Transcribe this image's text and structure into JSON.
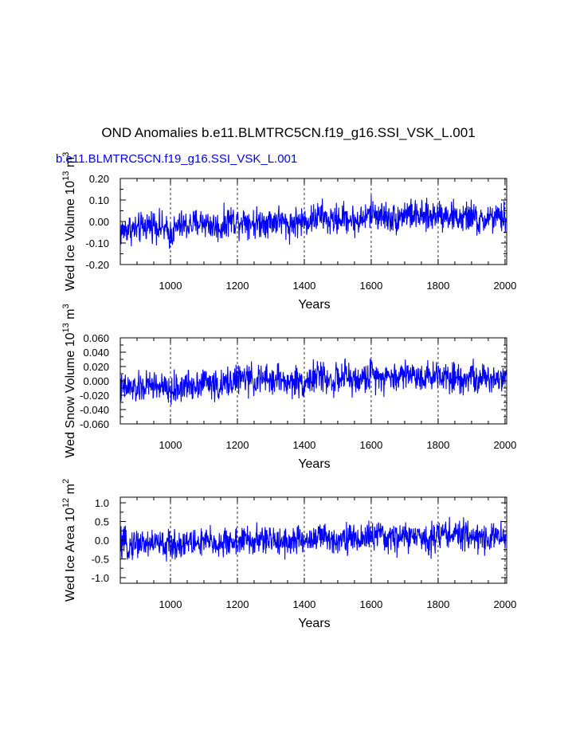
{
  "title": "OND Anomalies b.e11.BLMTRC5CN.f19_g16.SSI_VSK_L.001",
  "subtitle": "b.e11.BLMTRC5CN.f19_g16.SSI_VSK_L.001",
  "line_color": "#0000ff",
  "chart_data": [
    {
      "type": "line",
      "ylabel_main": "Wed Ice Volume 10",
      "ylabel_exp": "13",
      "ylabel_unit": " m",
      "ylabel_unit_exp": "3",
      "xlabel": "Years",
      "xlim": [
        850,
        2005
      ],
      "ylim": [
        -0.2,
        0.2
      ],
      "x_ticks": [
        1000,
        1200,
        1400,
        1600,
        1800,
        2000
      ],
      "x_tick_labels": [
        "1000",
        "1200",
        "1400",
        "1600",
        "1800",
        "2000"
      ],
      "y_ticks": [
        -0.2,
        -0.1,
        0.0,
        0.1,
        0.2
      ],
      "y_tick_labels": [
        "-0.20",
        "-0.10",
        "0.00",
        "0.10",
        "0.20"
      ],
      "grid": "vertical dashed at major x ticks",
      "series": [
        {
          "x": [
            850,
            875,
            900,
            925,
            950,
            975,
            1000,
            1025,
            1050,
            1075,
            1100,
            1125,
            1150,
            1175,
            1200,
            1225,
            1250,
            1275,
            1300,
            1325,
            1350,
            1375,
            1400,
            1425,
            1450,
            1475,
            1500,
            1525,
            1550,
            1575,
            1600,
            1625,
            1650,
            1675,
            1700,
            1725,
            1750,
            1775,
            1800,
            1825,
            1850,
            1875,
            1900,
            1925,
            1950,
            1975,
            2000
          ],
          "y": [
            -0.05,
            -0.03,
            -0.04,
            -0.02,
            -0.01,
            -0.03,
            -0.06,
            -0.02,
            -0.02,
            -0.01,
            0.0,
            -0.02,
            -0.03,
            0.01,
            0.0,
            0.01,
            -0.01,
            0.0,
            0.0,
            0.01,
            -0.02,
            0.0,
            0.0,
            0.01,
            0.03,
            0.0,
            0.01,
            0.02,
            0.0,
            0.01,
            0.04,
            0.03,
            0.02,
            0.01,
            0.04,
            0.03,
            0.02,
            0.02,
            0.04,
            0.03,
            0.02,
            0.01,
            0.03,
            -0.01,
            0.02,
            0.01,
            0.02
          ]
        }
      ]
    },
    {
      "type": "line",
      "ylabel_main": "Wed Snow Volume 10",
      "ylabel_exp": "13",
      "ylabel_unit": " m",
      "ylabel_unit_exp": "3",
      "xlabel": "Years",
      "xlim": [
        850,
        2005
      ],
      "ylim": [
        -0.06,
        0.06
      ],
      "x_ticks": [
        1000,
        1200,
        1400,
        1600,
        1800,
        2000
      ],
      "x_tick_labels": [
        "1000",
        "1200",
        "1400",
        "1600",
        "1800",
        "2000"
      ],
      "y_ticks": [
        -0.06,
        -0.04,
        -0.02,
        0.0,
        0.02,
        0.04,
        0.06
      ],
      "y_tick_labels": [
        "-0.060",
        "-0.040",
        "-0.020",
        "0.000",
        "0.020",
        "0.040",
        "0.060"
      ],
      "grid": "vertical dashed at major x ticks",
      "series": [
        {
          "x": [
            850,
            875,
            900,
            925,
            950,
            975,
            1000,
            1025,
            1050,
            1075,
            1100,
            1125,
            1150,
            1175,
            1200,
            1225,
            1250,
            1275,
            1300,
            1325,
            1350,
            1375,
            1400,
            1425,
            1450,
            1475,
            1500,
            1525,
            1550,
            1575,
            1600,
            1625,
            1650,
            1675,
            1700,
            1725,
            1750,
            1775,
            1800,
            1825,
            1850,
            1875,
            1900,
            1925,
            1950,
            1975,
            2000
          ],
          "y": [
            -0.012,
            -0.01,
            -0.012,
            -0.008,
            -0.005,
            -0.01,
            -0.015,
            -0.01,
            -0.006,
            -0.004,
            0.0,
            -0.004,
            -0.01,
            0.0,
            0.002,
            0.004,
            0.0,
            0.002,
            0.0,
            0.004,
            -0.004,
            0.0,
            -0.002,
            0.004,
            0.008,
            0.0,
            0.002,
            0.006,
            0.0,
            0.002,
            0.01,
            0.008,
            0.006,
            0.004,
            0.012,
            0.008,
            0.006,
            0.006,
            0.01,
            0.008,
            0.006,
            0.004,
            0.008,
            -0.002,
            0.006,
            0.004,
            0.006
          ]
        }
      ]
    },
    {
      "type": "line",
      "ylabel_main": "Wed Ice Area 10",
      "ylabel_exp": "12",
      "ylabel_unit": " m",
      "ylabel_unit_exp": "2",
      "xlabel": "Years",
      "xlim": [
        850,
        2005
      ],
      "ylim": [
        -1.15,
        1.15
      ],
      "x_ticks": [
        1000,
        1200,
        1400,
        1600,
        1800,
        2000
      ],
      "x_tick_labels": [
        "1000",
        "1200",
        "1400",
        "1600",
        "1800",
        "2000"
      ],
      "y_ticks": [
        -1.0,
        -0.5,
        0.0,
        0.5,
        1.0
      ],
      "y_tick_labels": [
        "-1.0",
        "-0.5",
        "0.0",
        "0.5",
        "1.0"
      ],
      "grid": "vertical dashed at major x ticks",
      "series": [
        {
          "x": [
            850,
            875,
            900,
            925,
            950,
            975,
            1000,
            1025,
            1050,
            1075,
            1100,
            1125,
            1150,
            1175,
            1200,
            1225,
            1250,
            1275,
            1300,
            1325,
            1350,
            1375,
            1400,
            1425,
            1450,
            1475,
            1500,
            1525,
            1550,
            1575,
            1600,
            1625,
            1650,
            1675,
            1700,
            1725,
            1750,
            1775,
            1800,
            1825,
            1850,
            1875,
            1900,
            1925,
            1950,
            1975,
            2000
          ],
          "y": [
            -0.1,
            -0.15,
            -0.05,
            -0.1,
            -0.05,
            -0.12,
            -0.15,
            -0.1,
            -0.05,
            -0.08,
            -0.05,
            -0.05,
            -0.12,
            -0.02,
            -0.05,
            0.0,
            -0.05,
            0.02,
            -0.02,
            0.02,
            -0.05,
            0.0,
            -0.02,
            0.05,
            0.1,
            0.0,
            0.05,
            0.1,
            0.0,
            0.05,
            0.15,
            0.1,
            0.05,
            0.05,
            0.12,
            0.08,
            0.05,
            0.05,
            0.15,
            0.2,
            0.15,
            0.1,
            0.15,
            0.05,
            0.1,
            0.08,
            0.1
          ]
        }
      ]
    }
  ]
}
